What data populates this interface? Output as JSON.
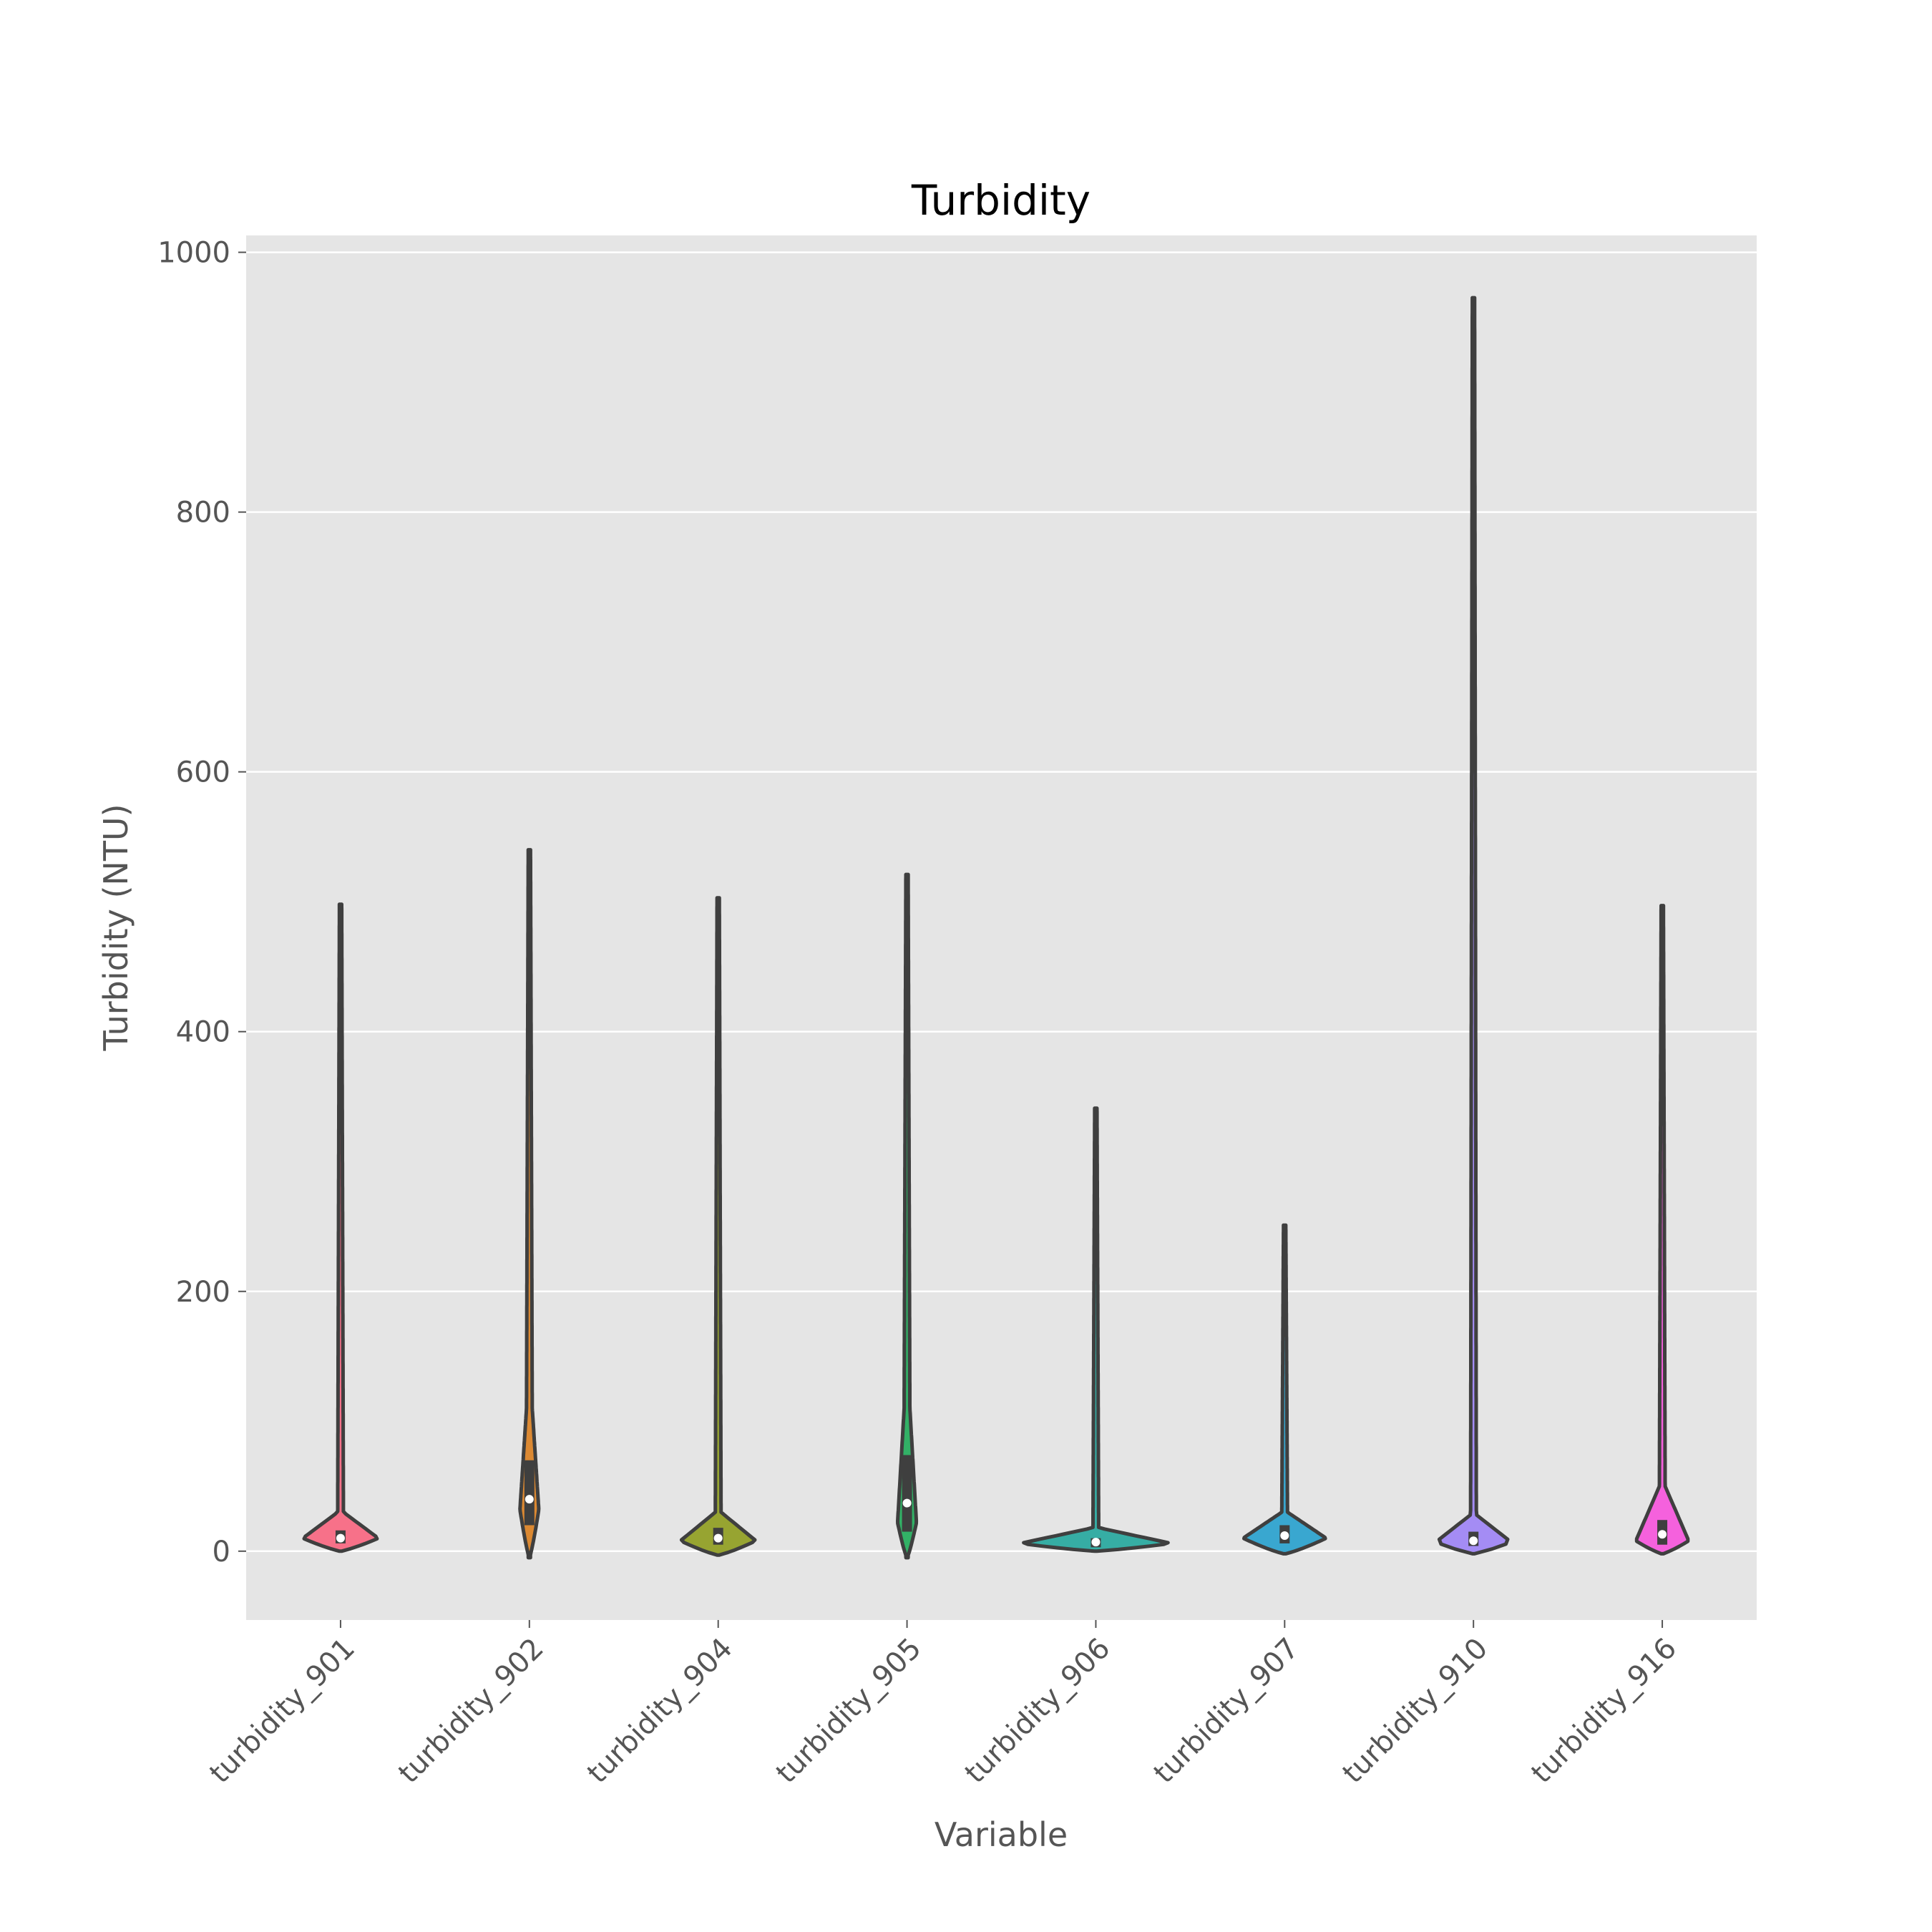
{
  "chart_data": {
    "type": "violin",
    "title": "Turbidity",
    "xlabel": "Variable",
    "ylabel": "Turbidity (NTU)",
    "ylim": [
      -53,
      1013
    ],
    "yticks": [
      0,
      200,
      400,
      600,
      800,
      1000
    ],
    "grid": true,
    "categories": [
      "turbidity_901",
      "turbidity_902",
      "turbidity_904",
      "turbidity_905",
      "turbidity_906",
      "turbidity_907",
      "turbidity_910",
      "turbidity_916"
    ],
    "series": [
      {
        "name": "turbidity_901",
        "color": "#f77189",
        "min": 0,
        "max": 498,
        "median": 10,
        "q1": 6,
        "q3": 16,
        "body_top": 30,
        "peak": 10,
        "peak_halfwidth": 0.2
      },
      {
        "name": "turbidity_902",
        "color": "#dc8932",
        "min": -5,
        "max": 540,
        "median": 40,
        "q1": 20,
        "q3": 70,
        "body_top": 110,
        "peak": 32,
        "peak_halfwidth": 0.05
      },
      {
        "name": "turbidity_904",
        "color": "#97a431",
        "min": -3,
        "max": 503,
        "median": 10,
        "q1": 5,
        "q3": 18,
        "body_top": 30,
        "peak": 8,
        "peak_halfwidth": 0.2
      },
      {
        "name": "turbidity_905",
        "color": "#32b166",
        "min": -5,
        "max": 521,
        "median": 37,
        "q1": 15,
        "q3": 74,
        "body_top": 110,
        "peak": 22,
        "peak_halfwidth": 0.05
      },
      {
        "name": "turbidity_906",
        "color": "#36ada4",
        "min": 0,
        "max": 341,
        "median": 7,
        "q1": 3,
        "q3": 10,
        "body_top": 18,
        "peak": 6,
        "peak_halfwidth": 0.4
      },
      {
        "name": "turbidity_907",
        "color": "#39a7d0",
        "min": -2,
        "max": 251,
        "median": 12,
        "q1": 6,
        "q3": 20,
        "body_top": 30,
        "peak": 10,
        "peak_halfwidth": 0.22
      },
      {
        "name": "turbidity_910",
        "color": "#a48cf4",
        "min": -2,
        "max": 965,
        "median": 8,
        "q1": 4,
        "q3": 15,
        "body_top": 28,
        "peak": 7,
        "peak_halfwidth": 0.2
      },
      {
        "name": "turbidity_916",
        "color": "#f561dd",
        "min": -2,
        "max": 497,
        "median": 13,
        "q1": 5,
        "q3": 24,
        "body_top": 50,
        "peak": 8,
        "peak_halfwidth": 0.14
      }
    ]
  }
}
